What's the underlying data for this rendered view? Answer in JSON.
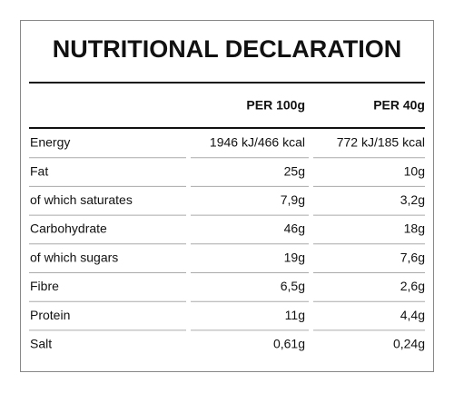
{
  "title": "NUTRITIONAL DECLARATION",
  "table": {
    "header": [
      "PER 100g",
      "PER 40g"
    ],
    "rows": [
      [
        "Energy",
        "1946 kJ/466 kcal",
        "772 kJ/185 kcal"
      ],
      [
        "Fat",
        "25g",
        "10g"
      ],
      [
        "of which saturates",
        "7,9g",
        "3,2g"
      ],
      [
        "Carbohydrate",
        "46g",
        "18g"
      ],
      [
        "of which sugars",
        "19g",
        "7,6g"
      ],
      [
        "Fibre",
        "6,5g",
        "2,6g"
      ],
      [
        "Protein",
        "11g",
        "4,4g"
      ],
      [
        "Salt",
        "0,61g",
        "0,24g"
      ]
    ]
  }
}
